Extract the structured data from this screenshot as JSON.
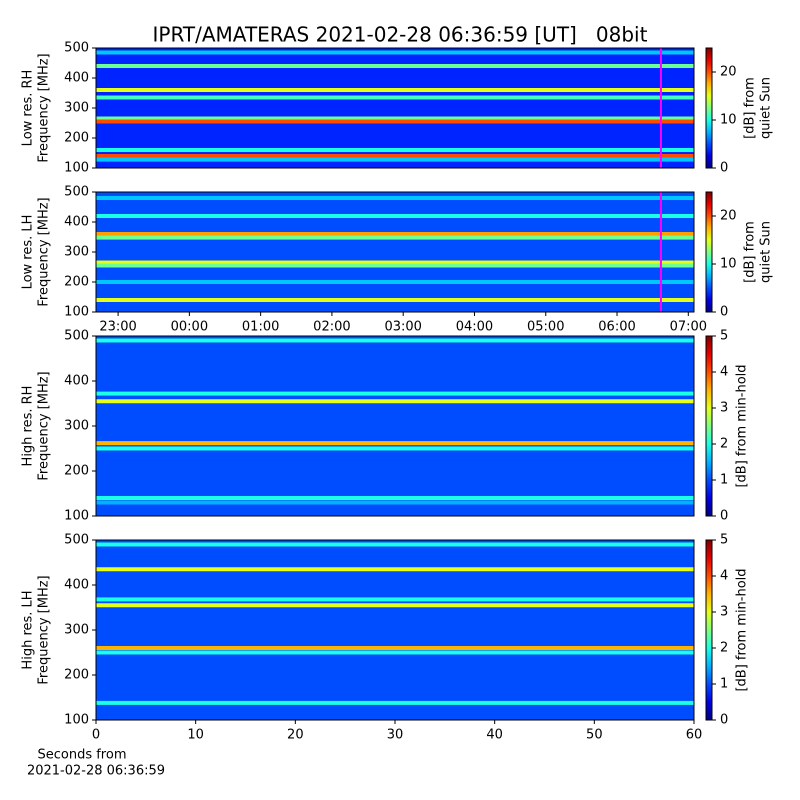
{
  "title": "IPRT/AMATERAS 2021-02-28 06:36:59 [UT]   08bit",
  "chart_data": [
    {
      "type": "spectrogram",
      "ylabel": [
        "Low res. RH",
        "Frequency [MHz]"
      ],
      "xlim": [
        -1.31,
        7.08
      ],
      "ylim": [
        100,
        500
      ],
      "yticks": [
        100,
        200,
        300,
        400,
        500
      ],
      "clim": [
        0,
        25
      ],
      "cticks": [
        0,
        10,
        20
      ],
      "clabel": [
        "[dB] from",
        "quiet Sun"
      ],
      "background_level": 4,
      "marker_x": 6.616,
      "marker_color": "#ff00ff",
      "bands": [
        {
          "freq": 485,
          "level": 8
        },
        {
          "freq": 440,
          "level": 12
        },
        {
          "freq": 360,
          "level": 15
        },
        {
          "freq": 335,
          "level": 11
        },
        {
          "freq": 265,
          "level": 12
        },
        {
          "freq": 255,
          "level": 20
        },
        {
          "freq": 160,
          "level": 10
        },
        {
          "freq": 140,
          "level": 20
        },
        {
          "freq": 128,
          "level": 8
        }
      ]
    },
    {
      "type": "spectrogram",
      "ylabel": [
        "Low res. LH",
        "Frequency [MHz]"
      ],
      "xlim": [
        -1.31,
        7.08
      ],
      "ylim": [
        100,
        500
      ],
      "yticks": [
        100,
        200,
        300,
        400,
        500
      ],
      "xticks": [
        {
          "value": -1,
          "label": "23:00"
        },
        {
          "value": 0,
          "label": "00:00"
        },
        {
          "value": 1,
          "label": "01:00"
        },
        {
          "value": 2,
          "label": "02:00"
        },
        {
          "value": 3,
          "label": "03:00"
        },
        {
          "value": 4,
          "label": "04:00"
        },
        {
          "value": 5,
          "label": "05:00"
        },
        {
          "value": 6,
          "label": "06:00"
        },
        {
          "value": 7,
          "label": "07:00"
        }
      ],
      "clim": [
        0,
        25
      ],
      "cticks": [
        0,
        10,
        20
      ],
      "clabel": [
        "[dB] from",
        "quiet Sun"
      ],
      "background_level": 5,
      "marker_x": 6.616,
      "marker_color": "#ff00ff",
      "bands": [
        {
          "freq": 480,
          "level": 8
        },
        {
          "freq": 420,
          "level": 10
        },
        {
          "freq": 360,
          "level": 18
        },
        {
          "freq": 348,
          "level": 12
        },
        {
          "freq": 265,
          "level": 15
        },
        {
          "freq": 255,
          "level": 12
        },
        {
          "freq": 200,
          "level": 8
        },
        {
          "freq": 140,
          "level": 15
        }
      ]
    },
    {
      "type": "spectrogram",
      "ylabel": [
        "High res. RH",
        "Frequency [MHz]"
      ],
      "xlim": [
        0,
        60
      ],
      "ylim": [
        100,
        500
      ],
      "yticks": [
        100,
        200,
        300,
        400,
        500
      ],
      "clim": [
        0,
        5
      ],
      "cticks": [
        0,
        1,
        2,
        3,
        4,
        5
      ],
      "clabel": [
        "[dB] from min-hold"
      ],
      "background_level": 1,
      "bands": [
        {
          "freq": 490,
          "level": 2
        },
        {
          "freq": 372,
          "level": 2
        },
        {
          "freq": 355,
          "level": 3
        },
        {
          "freq": 262,
          "level": 3.5
        },
        {
          "freq": 250,
          "level": 2
        },
        {
          "freq": 140,
          "level": 2
        },
        {
          "freq": 130,
          "level": 1.5
        }
      ]
    },
    {
      "type": "spectrogram",
      "ylabel": [
        "High res. LH",
        "Frequency [MHz]"
      ],
      "xlim": [
        0,
        60
      ],
      "ylim": [
        100,
        500
      ],
      "yticks": [
        100,
        200,
        300,
        400,
        500
      ],
      "xticks": [
        0,
        10,
        20,
        30,
        40,
        50,
        60
      ],
      "xlabel": [
        "Seconds from",
        "2021-02-28 06:36:59"
      ],
      "clim": [
        0,
        5
      ],
      "cticks": [
        0,
        1,
        2,
        3,
        4,
        5
      ],
      "clabel": [
        "[dB] from min-hold"
      ],
      "background_level": 1,
      "bands": [
        {
          "freq": 490,
          "level": 2
        },
        {
          "freq": 435,
          "level": 3
        },
        {
          "freq": 368,
          "level": 2
        },
        {
          "freq": 355,
          "level": 3
        },
        {
          "freq": 260,
          "level": 3.5
        },
        {
          "freq": 250,
          "level": 2
        },
        {
          "freq": 138,
          "level": 2
        }
      ]
    }
  ]
}
